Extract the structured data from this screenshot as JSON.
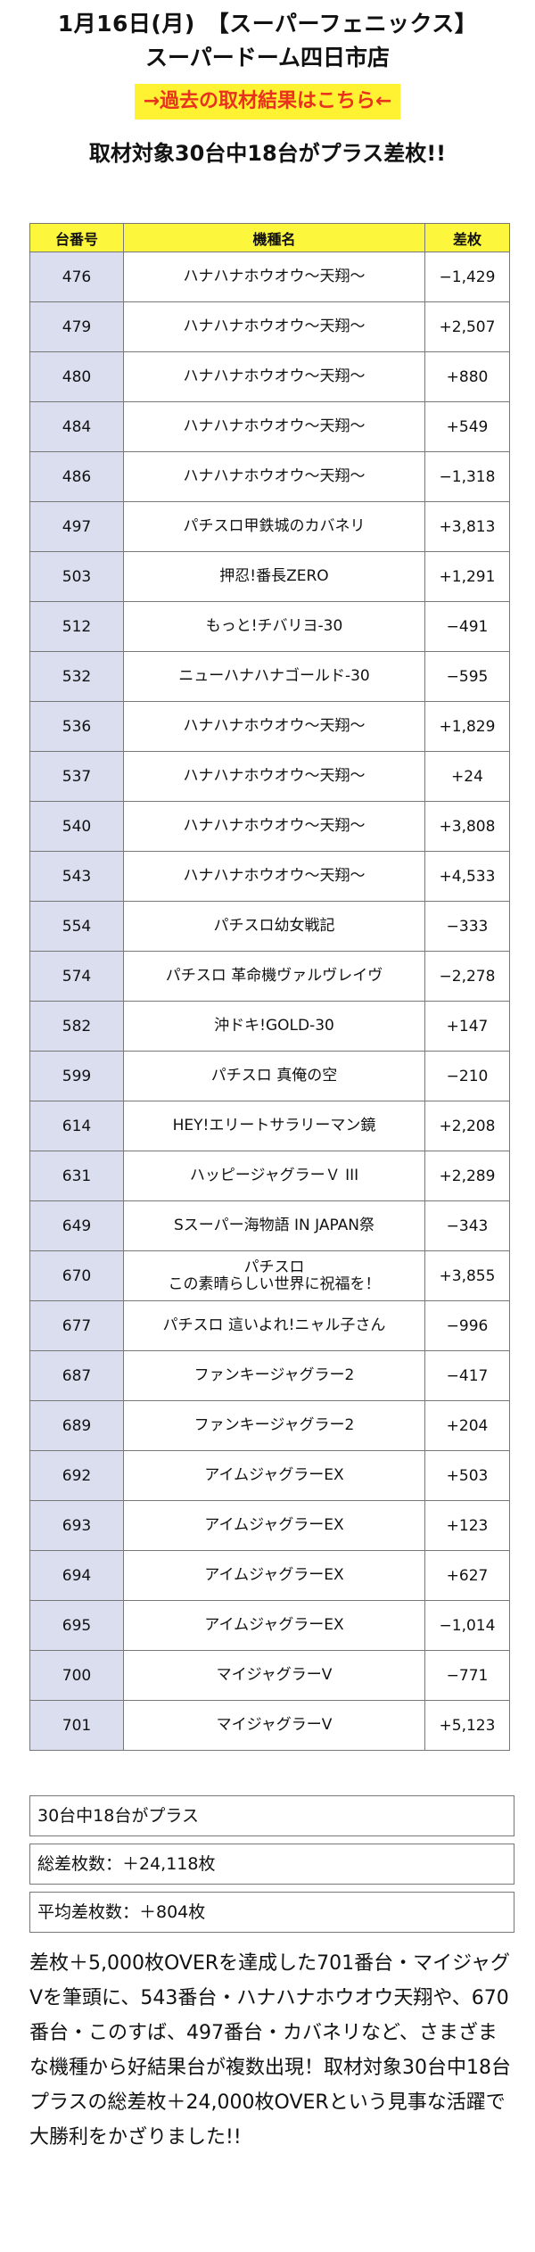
{
  "header": {
    "title_line1": "1月16日(月)　【スーパーフェニックス】",
    "title_line2": "スーパードーム四日市店",
    "past_link": "→過去の取材結果はこちら←",
    "headline": "取材対象30台中18台がプラス差枚!!"
  },
  "colors": {
    "header_bg": "#fcf63d",
    "link_bg": "#fff233",
    "link_text": "#e8321d",
    "num_cell_bg": "#dadeef"
  },
  "table": {
    "columns": [
      "台番号",
      "機種名",
      "差枚"
    ],
    "rows": [
      {
        "no": "476",
        "name": "ハナハナホウオウ〜天翔〜",
        "diff": "−1,429"
      },
      {
        "no": "479",
        "name": "ハナハナホウオウ〜天翔〜",
        "diff": "+2,507"
      },
      {
        "no": "480",
        "name": "ハナハナホウオウ〜天翔〜",
        "diff": "+880"
      },
      {
        "no": "484",
        "name": "ハナハナホウオウ〜天翔〜",
        "diff": "+549"
      },
      {
        "no": "486",
        "name": "ハナハナホウオウ〜天翔〜",
        "diff": "−1,318"
      },
      {
        "no": "497",
        "name": "パチスロ甲鉄城のカバネリ",
        "diff": "+3,813"
      },
      {
        "no": "503",
        "name": "押忍!番長ZERO",
        "diff": "+1,291"
      },
      {
        "no": "512",
        "name": "もっと!チバリヨ-30",
        "diff": "−491"
      },
      {
        "no": "532",
        "name": "ニューハナハナゴールド-30",
        "diff": "−595"
      },
      {
        "no": "536",
        "name": "ハナハナホウオウ〜天翔〜",
        "diff": "+1,829"
      },
      {
        "no": "537",
        "name": "ハナハナホウオウ〜天翔〜",
        "diff": "+24"
      },
      {
        "no": "540",
        "name": "ハナハナホウオウ〜天翔〜",
        "diff": "+3,808"
      },
      {
        "no": "543",
        "name": "ハナハナホウオウ〜天翔〜",
        "diff": "+4,533"
      },
      {
        "no": "554",
        "name": "パチスロ幼女戦記",
        "diff": "−333"
      },
      {
        "no": "574",
        "name": "パチスロ 革命機ヴァルヴレイヴ",
        "diff": "−2,278"
      },
      {
        "no": "582",
        "name": "沖ドキ!GOLD-30",
        "diff": "+147"
      },
      {
        "no": "599",
        "name": "パチスロ 真俺の空",
        "diff": "−210"
      },
      {
        "no": "614",
        "name": "HEY!エリートサラリーマン鏡",
        "diff": "+2,208"
      },
      {
        "no": "631",
        "name": "ハッピージャグラーＶ III",
        "diff": "+2,289"
      },
      {
        "no": "649",
        "name": "Sスーパー海物語 IN JAPAN祭",
        "diff": "−343"
      },
      {
        "no": "670",
        "name": "パチスロ\nこの素晴らしい世界に祝福を！",
        "diff": "+3,855"
      },
      {
        "no": "677",
        "name": "パチスロ 這いよれ!ニャル子さん",
        "diff": "−996"
      },
      {
        "no": "687",
        "name": "ファンキージャグラー2",
        "diff": "−417"
      },
      {
        "no": "689",
        "name": "ファンキージャグラー2",
        "diff": "+204"
      },
      {
        "no": "692",
        "name": "アイムジャグラーEX",
        "diff": "+503"
      },
      {
        "no": "693",
        "name": "アイムジャグラーEX",
        "diff": "+123"
      },
      {
        "no": "694",
        "name": "アイムジャグラーEX",
        "diff": "+627"
      },
      {
        "no": "695",
        "name": "アイムジャグラーEX",
        "diff": "−1,014"
      },
      {
        "no": "700",
        "name": "マイジャグラーV",
        "diff": "−771"
      },
      {
        "no": "701",
        "name": "マイジャグラーV",
        "diff": "+5,123"
      }
    ]
  },
  "summary": {
    "plus_count": "30台中18台がプラス",
    "total": "総差枚数：＋24,118枚",
    "average": "平均差枚数：＋804枚"
  },
  "body_text": "差枚＋5,000枚OVERを達成した701番台・マイジャグVを筆頭に、543番台・ハナハナホウオウ天翔や、670番台・このすば、497番台・カバネリなど、さまざまな機種から好結果台が複数出現！取材対象30台中18台プラスの総差枚＋24,000枚OVERという見事な活躍で大勝利をかざりました!!"
}
